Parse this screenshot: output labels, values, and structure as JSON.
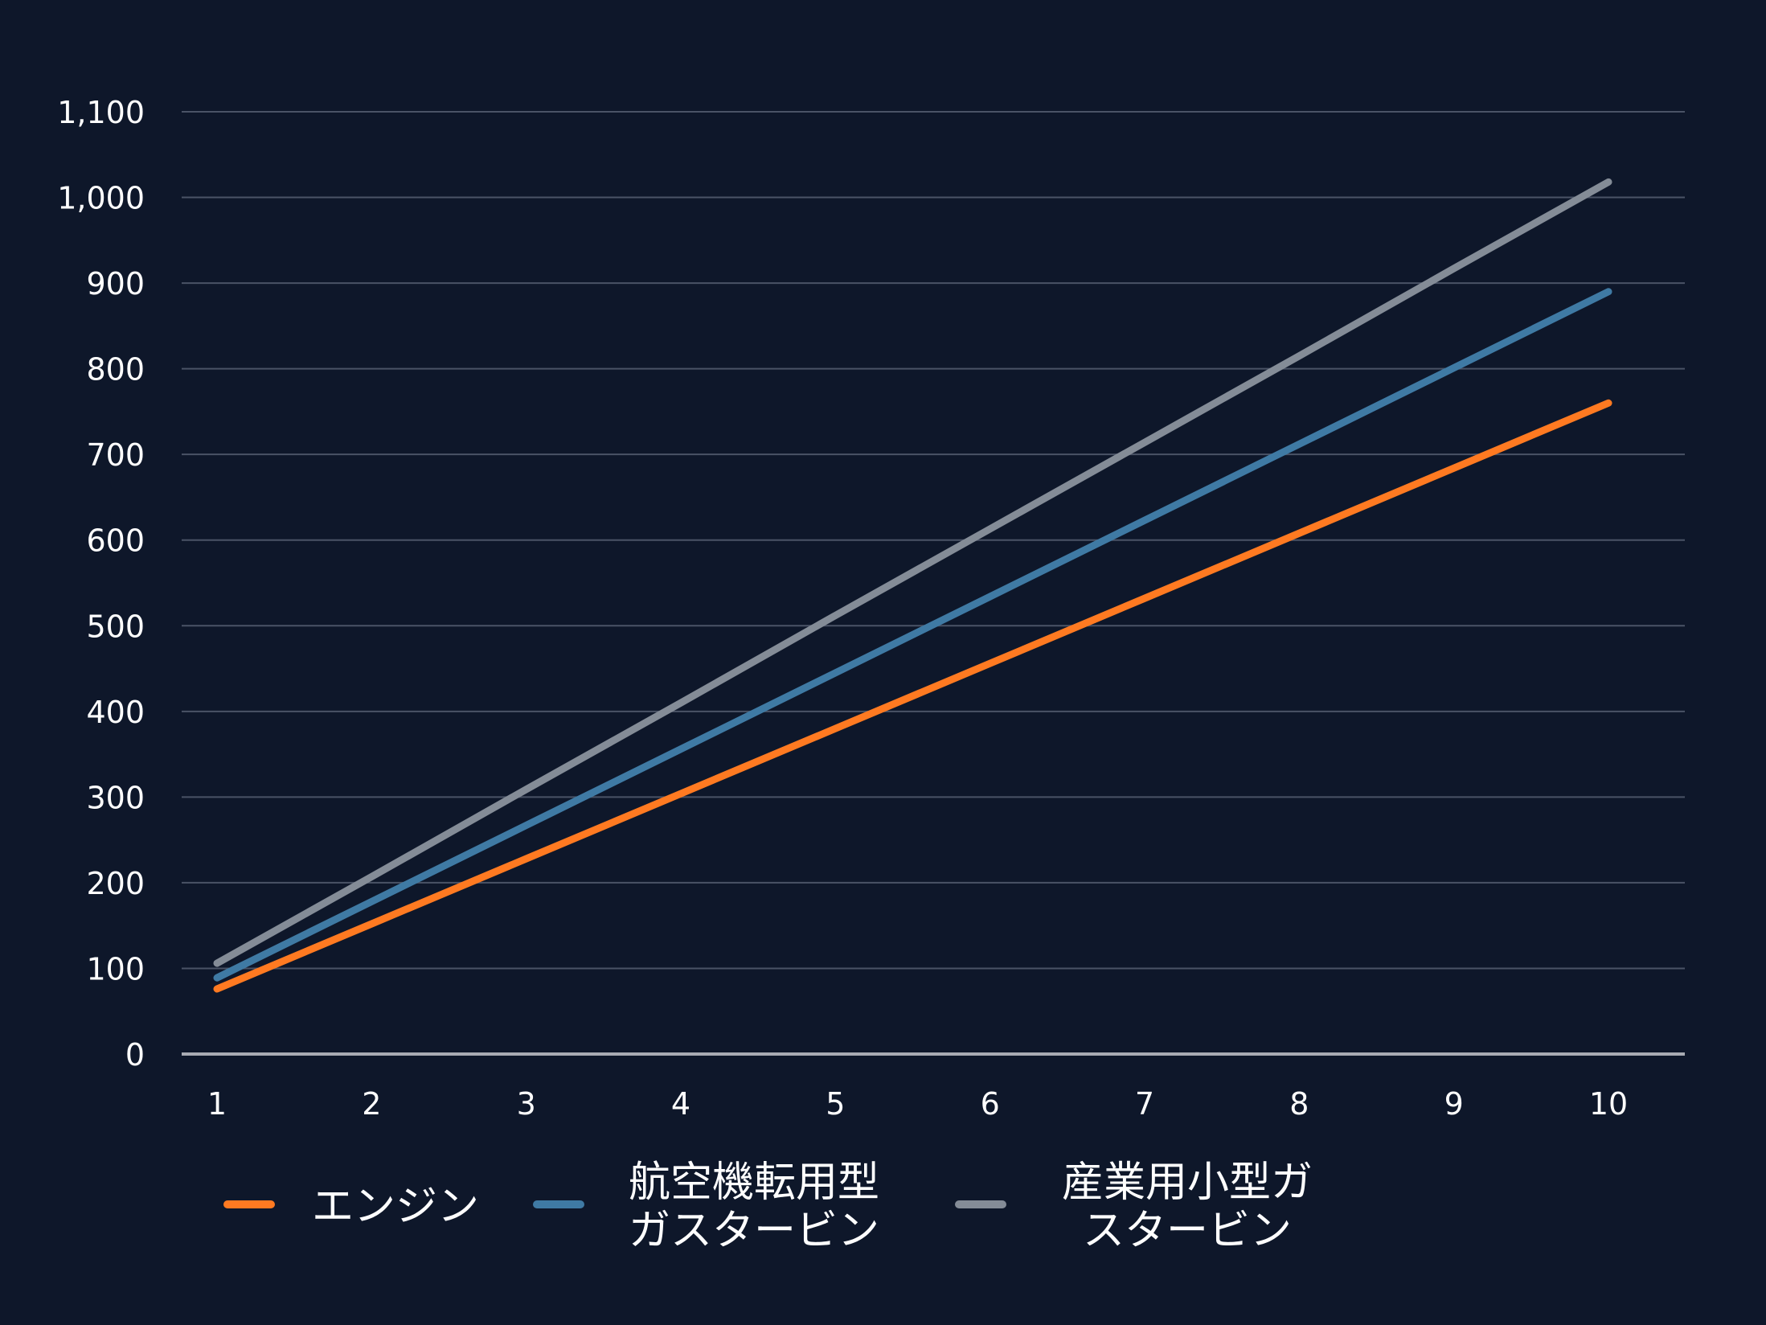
{
  "chart_data": {
    "type": "line",
    "x": [
      1,
      2,
      3,
      4,
      5,
      6,
      7,
      8,
      9,
      10
    ],
    "ylim": [
      0,
      1100
    ],
    "yticks": [
      0,
      100,
      200,
      300,
      400,
      500,
      600,
      700,
      800,
      900,
      1000,
      1100
    ],
    "ytick_labels": [
      "0",
      "100",
      "200",
      "300",
      "400",
      "500",
      "600",
      "700",
      "800",
      "900",
      "1,000",
      "1,100"
    ],
    "xtick_labels": [
      "1",
      "2",
      "3",
      "4",
      "5",
      "6",
      "7",
      "8",
      "9",
      "10"
    ],
    "grid": true,
    "legend_position": "bottom",
    "background_color": "#0e172a",
    "grid_color": "#4a5366",
    "axis_color": "#a8abb3",
    "series": [
      {
        "name": "エンジン",
        "legend_lines": [
          "エンジン"
        ],
        "color": "#ff7a21",
        "values": [
          76,
          152,
          228,
          304,
          380,
          456,
          532,
          608,
          684,
          760
        ]
      },
      {
        "name": "航空機転用型ガスタービン",
        "legend_lines": [
          "航空機転用型",
          "ガスタービン"
        ],
        "color": "#3f7aa4",
        "values": [
          89,
          178,
          267,
          356,
          445,
          534,
          623,
          712,
          801,
          890
        ]
      },
      {
        "name": "産業用小型ガスタービン",
        "legend_lines": [
          "産業用小型ガ",
          "スタービン"
        ],
        "color": "#848c97",
        "values": [
          106,
          207,
          309,
          410,
          512,
          613,
          714,
          815,
          917,
          1018
        ]
      }
    ]
  }
}
